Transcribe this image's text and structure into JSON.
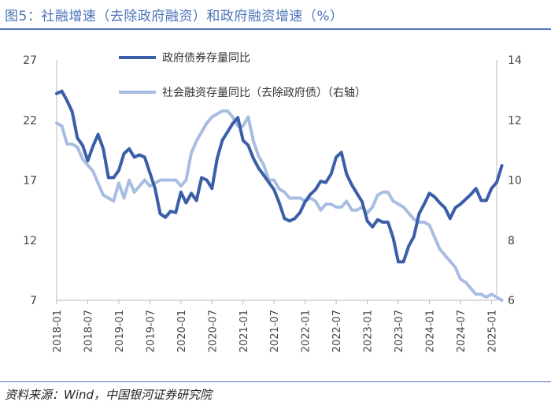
{
  "title": "图5：社融增速（去除政府融资）和政府融资增速（%）",
  "source": "资料来源：Wind，中国银河证券研究院",
  "chart_data": {
    "type": "line",
    "title": "图5：社融增速（去除政府融资）和政府融资增速（%）",
    "left_axis": {
      "ylim": [
        7,
        27
      ],
      "ticks": [
        7,
        12,
        17,
        22,
        27
      ]
    },
    "right_axis": {
      "ylim": [
        6,
        14
      ],
      "ticks": [
        6,
        8,
        10,
        12,
        14
      ]
    },
    "x_range": [
      "2018-01",
      "2025-02"
    ],
    "x_ticks": [
      "2018-01",
      "2018-07",
      "2019-01",
      "2019-07",
      "2020-01",
      "2020-07",
      "2021-01",
      "2021-07",
      "2022-01",
      "2022-07",
      "2023-01",
      "2023-07",
      "2024-01",
      "2024-07",
      "2025-01"
    ],
    "legend_position": "top-center",
    "grid": false,
    "series": [
      {
        "name": "政府债券存量同比",
        "axis": "left",
        "color": "#3a5ea8",
        "points": [
          [
            "2018-01",
            24.2
          ],
          [
            "2018-02",
            24.4
          ],
          [
            "2018-03",
            23.6
          ],
          [
            "2018-04",
            22.7
          ],
          [
            "2018-05",
            20.5
          ],
          [
            "2018-06",
            19.9
          ],
          [
            "2018-07",
            18.6
          ],
          [
            "2018-08",
            19.8
          ],
          [
            "2018-09",
            20.8
          ],
          [
            "2018-10",
            19.6
          ],
          [
            "2018-11",
            17.2
          ],
          [
            "2018-12",
            17.2
          ],
          [
            "2019-01",
            17.8
          ],
          [
            "2019-02",
            19.2
          ],
          [
            "2019-03",
            19.6
          ],
          [
            "2019-04",
            18.9
          ],
          [
            "2019-05",
            19.1
          ],
          [
            "2019-06",
            18.9
          ],
          [
            "2019-07",
            17.6
          ],
          [
            "2019-08",
            16.3
          ],
          [
            "2019-09",
            14.2
          ],
          [
            "2019-10",
            13.9
          ],
          [
            "2019-11",
            14.4
          ],
          [
            "2019-12",
            14.3
          ],
          [
            "2020-01",
            16.0
          ],
          [
            "2020-02",
            15.1
          ],
          [
            "2020-03",
            15.9
          ],
          [
            "2020-04",
            15.3
          ],
          [
            "2020-05",
            17.2
          ],
          [
            "2020-06",
            17.0
          ],
          [
            "2020-07",
            16.3
          ],
          [
            "2020-08",
            18.8
          ],
          [
            "2020-09",
            20.3
          ],
          [
            "2020-10",
            21.0
          ],
          [
            "2020-11",
            21.7
          ],
          [
            "2020-12",
            22.2
          ],
          [
            "2021-01",
            20.3
          ],
          [
            "2021-02",
            19.9
          ],
          [
            "2021-03",
            18.8
          ],
          [
            "2021-04",
            18.0
          ],
          [
            "2021-05",
            17.4
          ],
          [
            "2021-06",
            16.8
          ],
          [
            "2021-07",
            16.2
          ],
          [
            "2021-08",
            15.1
          ],
          [
            "2021-09",
            13.8
          ],
          [
            "2021-10",
            13.6
          ],
          [
            "2021-11",
            13.8
          ],
          [
            "2021-12",
            14.3
          ],
          [
            "2022-01",
            15.2
          ],
          [
            "2022-02",
            15.8
          ],
          [
            "2022-03",
            16.2
          ],
          [
            "2022-04",
            16.9
          ],
          [
            "2022-05",
            16.8
          ],
          [
            "2022-06",
            17.5
          ],
          [
            "2022-07",
            18.9
          ],
          [
            "2022-08",
            19.3
          ],
          [
            "2022-09",
            17.5
          ],
          [
            "2022-10",
            16.6
          ],
          [
            "2022-11",
            15.9
          ],
          [
            "2022-12",
            15.2
          ],
          [
            "2023-01",
            13.6
          ],
          [
            "2023-02",
            13.1
          ],
          [
            "2023-03",
            13.7
          ],
          [
            "2023-04",
            13.5
          ],
          [
            "2023-05",
            13.5
          ],
          [
            "2023-06",
            12.2
          ],
          [
            "2023-07",
            10.2
          ],
          [
            "2023-08",
            10.2
          ],
          [
            "2023-09",
            11.5
          ],
          [
            "2023-10",
            12.3
          ],
          [
            "2023-11",
            14.2
          ],
          [
            "2023-12",
            15.0
          ],
          [
            "2024-01",
            15.9
          ],
          [
            "2024-02",
            15.6
          ],
          [
            "2024-03",
            15.1
          ],
          [
            "2024-04",
            14.7
          ],
          [
            "2024-05",
            13.8
          ],
          [
            "2024-06",
            14.7
          ],
          [
            "2024-07",
            15.0
          ],
          [
            "2024-08",
            15.4
          ],
          [
            "2024-09",
            15.8
          ],
          [
            "2024-10",
            16.3
          ],
          [
            "2024-11",
            15.3
          ],
          [
            "2024-12",
            15.3
          ],
          [
            "2025-01",
            16.3
          ],
          [
            "2025-02",
            16.8
          ],
          [
            "2025-03",
            18.2
          ]
        ]
      },
      {
        "name": "社会融资存量同比（去除政府债）（右轴）",
        "axis": "right",
        "color": "#a9bde2",
        "points": [
          [
            "2018-01",
            11.9
          ],
          [
            "2018-02",
            11.8
          ],
          [
            "2018-03",
            11.2
          ],
          [
            "2018-04",
            11.2
          ],
          [
            "2018-05",
            11.1
          ],
          [
            "2018-06",
            10.7
          ],
          [
            "2018-07",
            10.5
          ],
          [
            "2018-08",
            10.3
          ],
          [
            "2018-09",
            9.9
          ],
          [
            "2018-10",
            9.5
          ],
          [
            "2018-11",
            9.4
          ],
          [
            "2018-12",
            9.3
          ],
          [
            "2019-01",
            9.9
          ],
          [
            "2019-02",
            9.4
          ],
          [
            "2019-03",
            10.0
          ],
          [
            "2019-04",
            9.6
          ],
          [
            "2019-05",
            9.8
          ],
          [
            "2019-06",
            10.0
          ],
          [
            "2019-07",
            9.8
          ],
          [
            "2019-08",
            9.9
          ],
          [
            "2019-09",
            10.0
          ],
          [
            "2019-10",
            10.0
          ],
          [
            "2019-11",
            10.0
          ],
          [
            "2019-12",
            10.0
          ],
          [
            "2020-01",
            9.8
          ],
          [
            "2020-02",
            10.0
          ],
          [
            "2020-03",
            10.9
          ],
          [
            "2020-04",
            11.3
          ],
          [
            "2020-05",
            11.6
          ],
          [
            "2020-06",
            11.9
          ],
          [
            "2020-07",
            12.1
          ],
          [
            "2020-08",
            12.2
          ],
          [
            "2020-09",
            12.3
          ],
          [
            "2020-10",
            12.3
          ],
          [
            "2020-11",
            12.1
          ],
          [
            "2020-12",
            11.8
          ],
          [
            "2021-01",
            11.8
          ],
          [
            "2021-02",
            12.1
          ],
          [
            "2021-03",
            11.3
          ],
          [
            "2021-04",
            10.8
          ],
          [
            "2021-05",
            10.5
          ],
          [
            "2021-06",
            10.0
          ],
          [
            "2021-07",
            10.0
          ],
          [
            "2021-08",
            9.7
          ],
          [
            "2021-09",
            9.6
          ],
          [
            "2021-10",
            9.4
          ],
          [
            "2021-11",
            9.4
          ],
          [
            "2021-12",
            9.4
          ],
          [
            "2022-01",
            9.3
          ],
          [
            "2022-02",
            9.4
          ],
          [
            "2022-03",
            9.3
          ],
          [
            "2022-04",
            9.0
          ],
          [
            "2022-05",
            9.2
          ],
          [
            "2022-06",
            9.2
          ],
          [
            "2022-07",
            9.1
          ],
          [
            "2022-08",
            9.1
          ],
          [
            "2022-09",
            9.3
          ],
          [
            "2022-10",
            9.0
          ],
          [
            "2022-11",
            9.0
          ],
          [
            "2022-12",
            9.1
          ],
          [
            "2023-01",
            8.9
          ],
          [
            "2023-02",
            9.1
          ],
          [
            "2023-03",
            9.5
          ],
          [
            "2023-04",
            9.6
          ],
          [
            "2023-05",
            9.6
          ],
          [
            "2023-06",
            9.3
          ],
          [
            "2023-07",
            9.2
          ],
          [
            "2023-08",
            9.1
          ],
          [
            "2023-09",
            8.9
          ],
          [
            "2023-10",
            8.7
          ],
          [
            "2023-11",
            8.6
          ],
          [
            "2023-12",
            8.6
          ],
          [
            "2024-01",
            8.5
          ],
          [
            "2024-02",
            8.1
          ],
          [
            "2024-03",
            7.7
          ],
          [
            "2024-04",
            7.5
          ],
          [
            "2024-05",
            7.3
          ],
          [
            "2024-06",
            7.1
          ],
          [
            "2024-07",
            6.7
          ],
          [
            "2024-08",
            6.6
          ],
          [
            "2024-09",
            6.4
          ],
          [
            "2024-10",
            6.2
          ],
          [
            "2024-11",
            6.2
          ],
          [
            "2024-12",
            6.1
          ],
          [
            "2025-01",
            6.2
          ],
          [
            "2025-02",
            6.1
          ],
          [
            "2025-03",
            6.0
          ]
        ]
      }
    ]
  }
}
